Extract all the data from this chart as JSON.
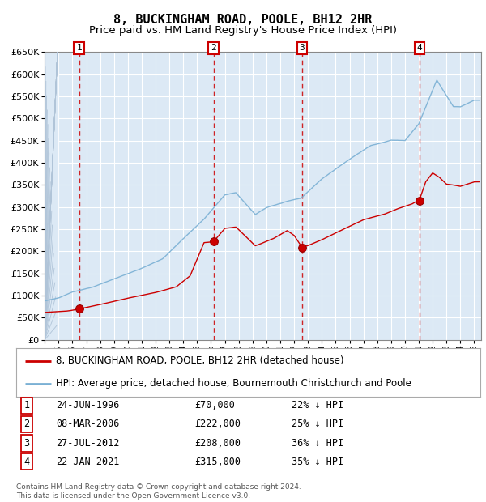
{
  "title": "8, BUCKINGHAM ROAD, POOLE, BH12 2HR",
  "subtitle": "Price paid vs. HM Land Registry's House Price Index (HPI)",
  "ylim": [
    0,
    650000
  ],
  "yticks": [
    0,
    50000,
    100000,
    150000,
    200000,
    250000,
    300000,
    350000,
    400000,
    450000,
    500000,
    550000,
    600000,
    650000
  ],
  "xlim_start": 1994.0,
  "xlim_end": 2025.5,
  "sale_dates": [
    1996.478,
    2006.181,
    2012.567,
    2021.055
  ],
  "sale_prices": [
    70000,
    222000,
    208000,
    315000
  ],
  "sale_labels": [
    "1",
    "2",
    "3",
    "4"
  ],
  "plot_bg": "#dce9f5",
  "hatch_color": "#c0cfe0",
  "red_line_color": "#cc0000",
  "blue_line_color": "#7ab0d4",
  "vline_color": "#cc0000",
  "marker_color": "#cc0000",
  "grid_color": "#b8cfe0",
  "legend_entries": [
    "8, BUCKINGHAM ROAD, POOLE, BH12 2HR (detached house)",
    "HPI: Average price, detached house, Bournemouth Christchurch and Poole"
  ],
  "table_rows": [
    [
      "1",
      "24-JUN-1996",
      "£70,000",
      "22% ↓ HPI"
    ],
    [
      "2",
      "08-MAR-2006",
      "£222,000",
      "25% ↓ HPI"
    ],
    [
      "3",
      "27-JUL-2012",
      "£208,000",
      "36% ↓ HPI"
    ],
    [
      "4",
      "22-JAN-2021",
      "£315,000",
      "35% ↓ HPI"
    ]
  ],
  "footnote": "Contains HM Land Registry data © Crown copyright and database right 2024.\nThis data is licensed under the Open Government Licence v3.0.",
  "title_fontsize": 11,
  "subtitle_fontsize": 9.5,
  "tick_fontsize": 8,
  "label_fontsize": 9
}
